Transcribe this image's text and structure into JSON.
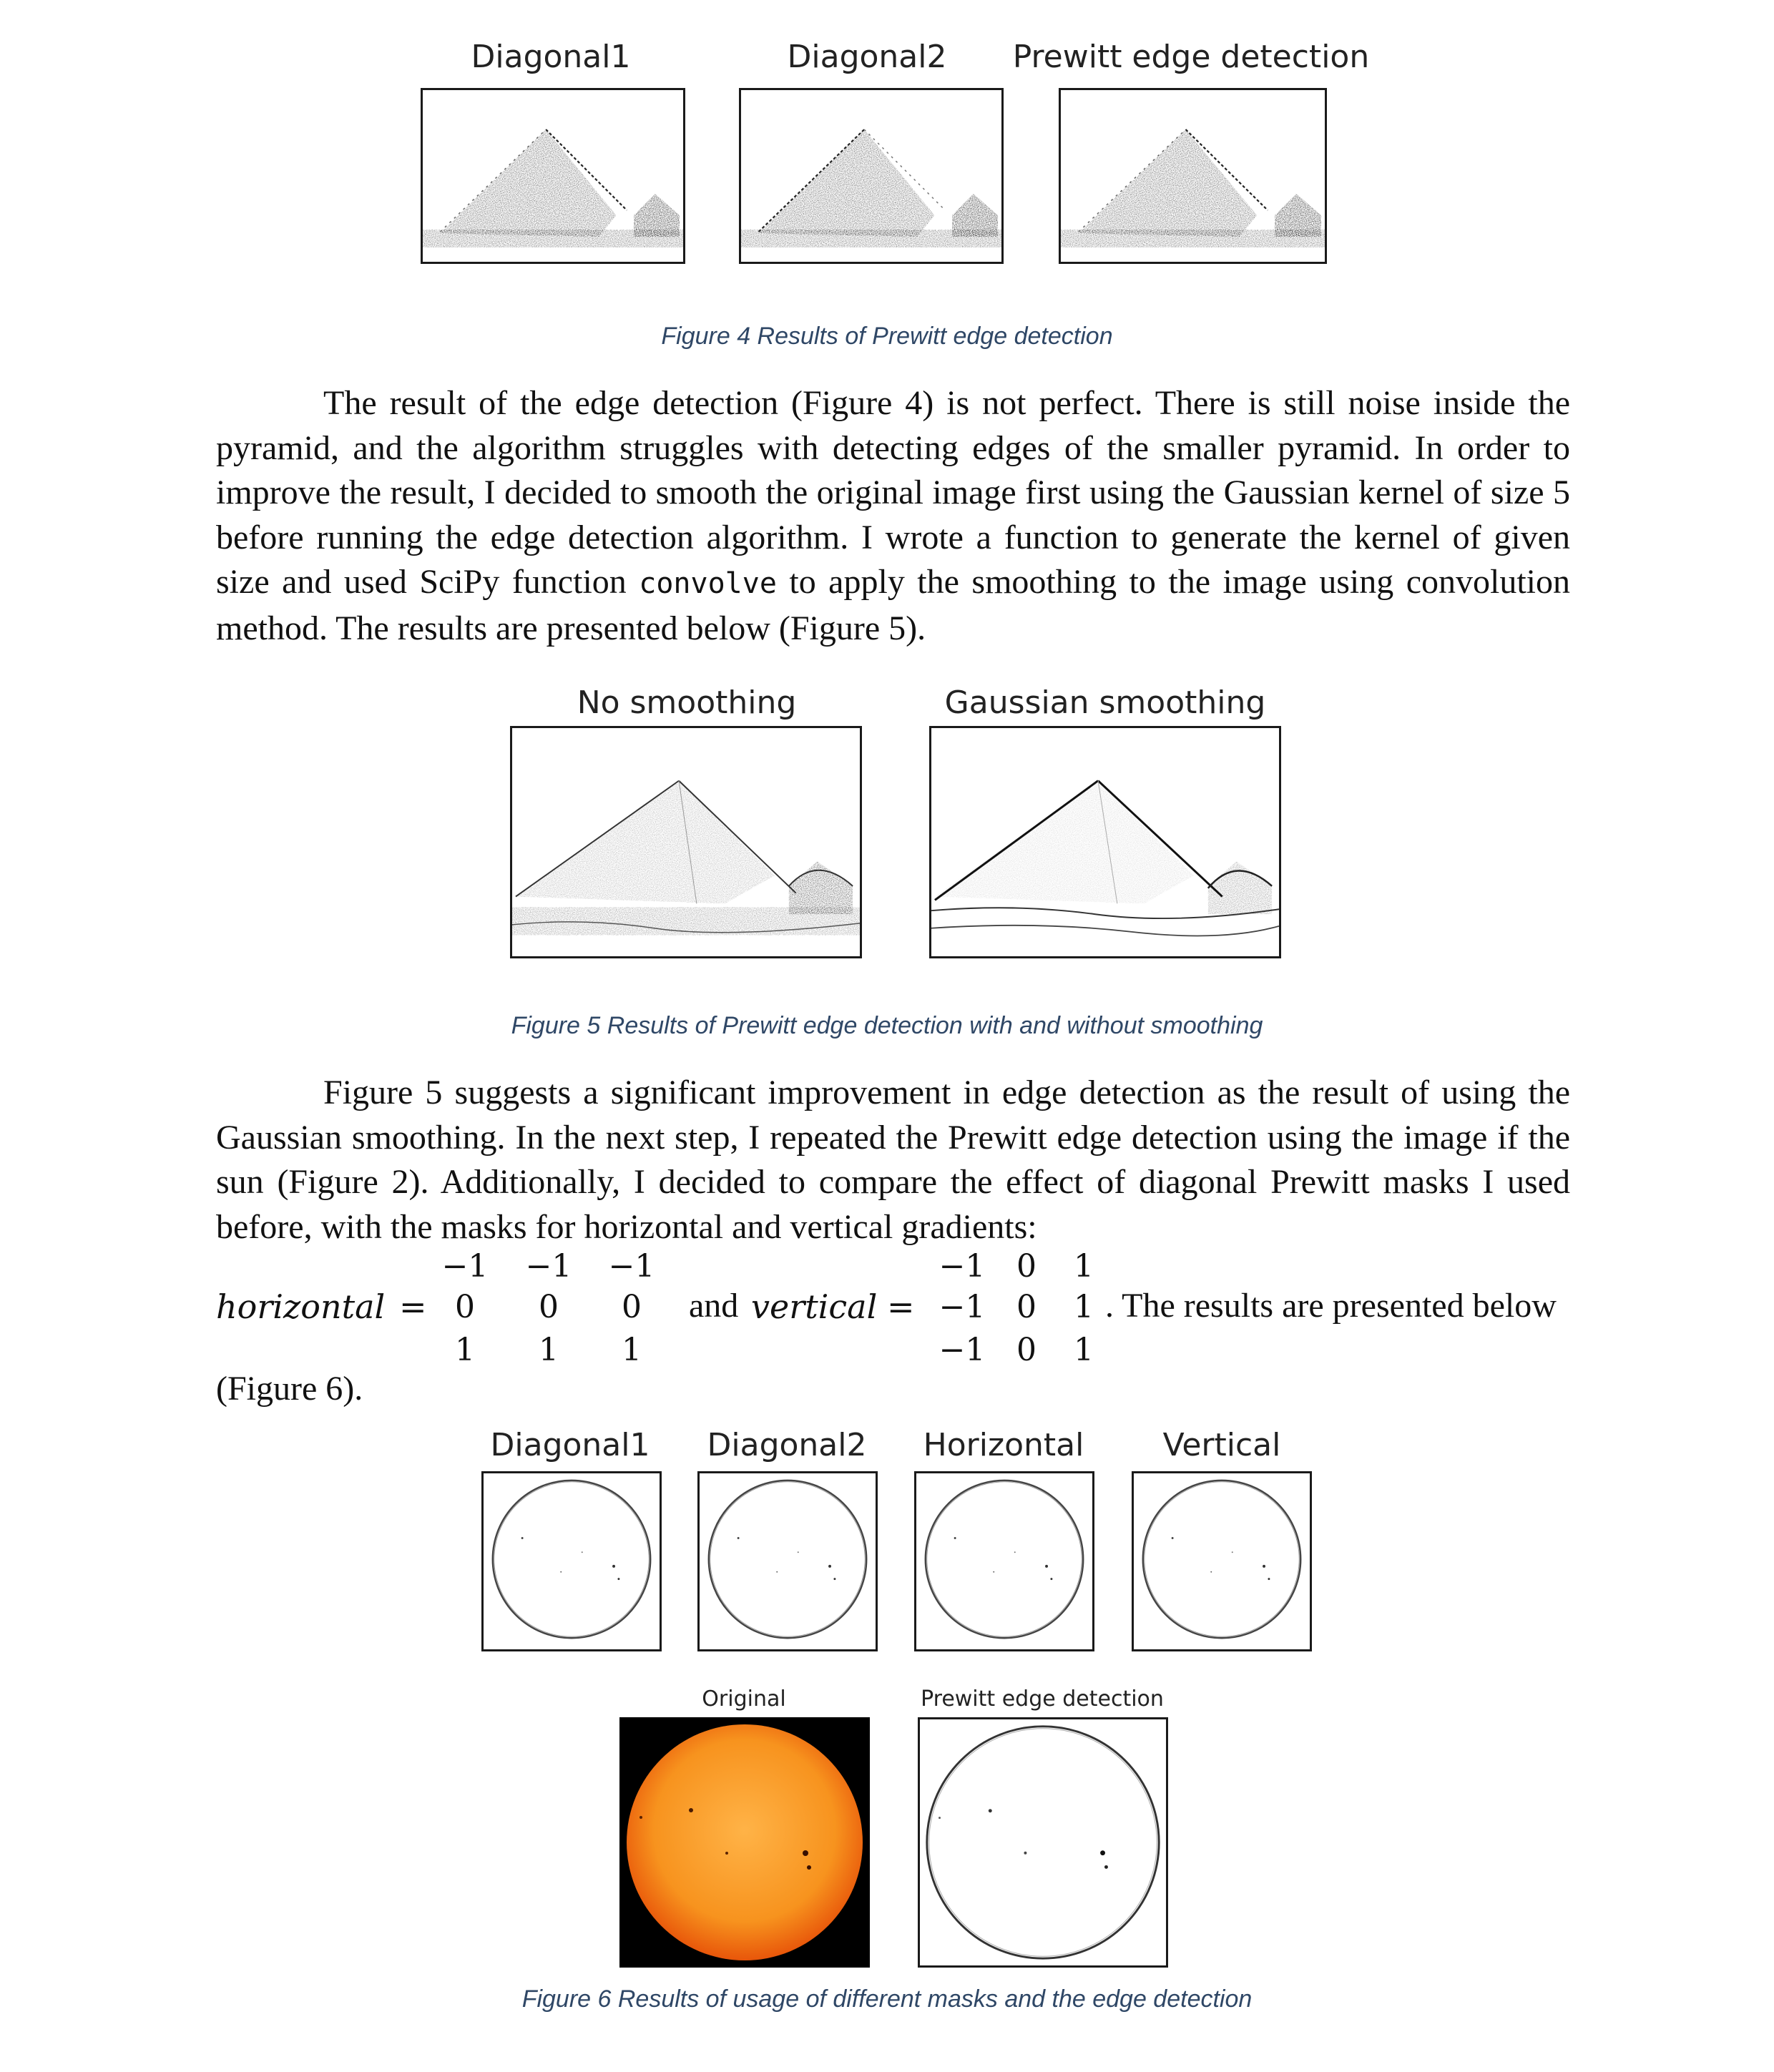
{
  "figure4": {
    "panels": [
      {
        "title": "Diagonal1"
      },
      {
        "title": "Diagonal2"
      },
      {
        "title": "Prewitt edge detection"
      }
    ],
    "caption": "Figure 4 Results of Prewitt edge detection"
  },
  "paragraph1": {
    "before_code": "The result of the edge detection (Figure 4) is not perfect. There is still noise inside the pyramid, and the algorithm struggles with detecting edges of the smaller pyramid. In order to improve the result, I decided to smooth the original image first using the Gaussian kernel of size 5 before running the edge detection algorithm. I wrote a function to generate the kernel of given size and used SciPy function",
    "code": "convolve",
    "after_code": "to apply the smoothing to the image using convolution method. The results are presented below (Figure 5)."
  },
  "figure5": {
    "panels": [
      {
        "title": "No smoothing"
      },
      {
        "title": "Gaussian smoothing"
      }
    ],
    "caption": "Figure 5 Results of Prewitt edge detection with and without smoothing"
  },
  "paragraph2": {
    "text": "Figure 5 suggests a significant improvement in edge detection as the result of using the Gaussian smoothing. In the next step, I repeated the Prewitt edge detection using the image if the sun (Figure 2). Additionally, I decided to compare the effect of diagonal Prewitt masks I used before, with the masks for horizontal and vertical gradients:"
  },
  "equation": {
    "horizontal_label": "horizontal",
    "equals": "=",
    "and_text": "and",
    "vertical_label": "vertical",
    "tail_text": ". The results are presented below",
    "horizontal_matrix": [
      [
        "−1",
        "−1",
        "−1"
      ],
      [
        "0",
        "0",
        "0"
      ],
      [
        "1",
        "1",
        "1"
      ]
    ],
    "vertical_matrix": [
      [
        "−1",
        "0",
        "1"
      ],
      [
        "−1",
        "0",
        "1"
      ],
      [
        "−1",
        "0",
        "1"
      ]
    ],
    "continuation": "(Figure 6)."
  },
  "figure6": {
    "panels": [
      {
        "title": "Diagonal1"
      },
      {
        "title": "Diagonal2"
      },
      {
        "title": "Horizontal"
      },
      {
        "title": "Vertical"
      }
    ],
    "bottom_panels": [
      {
        "title": "Original"
      },
      {
        "title": "Prewitt edge detection"
      }
    ],
    "caption": "Figure 6 Results of usage of different masks and the edge detection",
    "sun_color": "#f7931e"
  }
}
